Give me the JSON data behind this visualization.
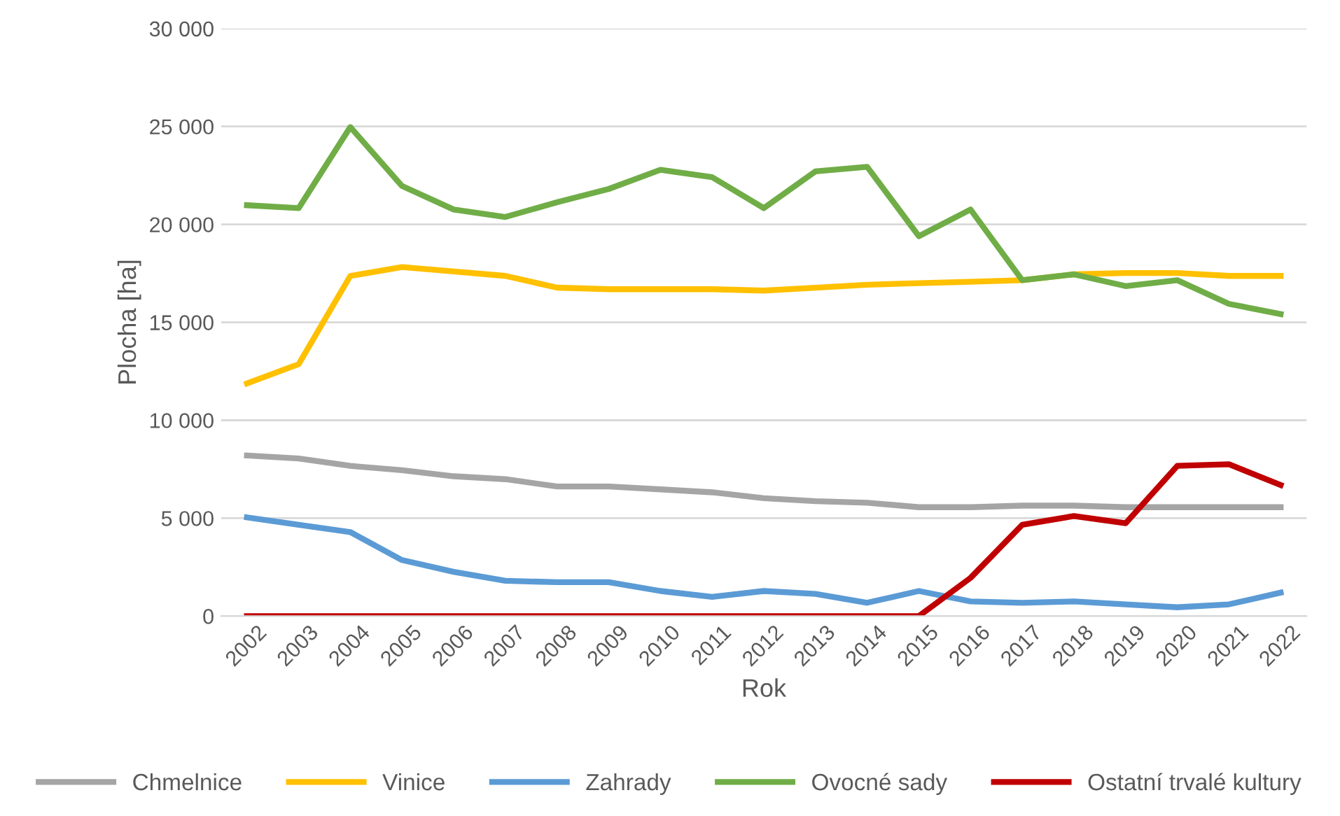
{
  "chart_data": {
    "type": "line",
    "xlabel": "Rok",
    "ylabel": "Plocha [ha]",
    "categories": [
      "2002",
      "2003",
      "2004",
      "2005",
      "2006",
      "2007",
      "2008",
      "2009",
      "2010",
      "2011",
      "2012",
      "2013",
      "2014",
      "2015",
      "2016",
      "2017",
      "2018",
      "2019",
      "2020",
      "2021",
      "2022"
    ],
    "series": [
      {
        "name": "Chmelnice",
        "color": "#a5a5a5",
        "values": [
          8200,
          8050,
          7670,
          7450,
          7140,
          6990,
          6620,
          6620,
          6470,
          6320,
          6020,
          5870,
          5790,
          5560,
          5560,
          5640,
          5640,
          5560,
          5560,
          5560,
          5560
        ]
      },
      {
        "name": "Vinice",
        "color": "#ffc000",
        "values": [
          11880,
          12860,
          17370,
          17820,
          17600,
          17370,
          16770,
          16690,
          16690,
          16690,
          16620,
          16770,
          16920,
          17000,
          17070,
          17150,
          17450,
          17520,
          17520,
          17370,
          17370
        ]
      },
      {
        "name": "Zahrady",
        "color": "#5b9bd5",
        "values": [
          5040,
          4660,
          4290,
          2860,
          2260,
          1800,
          1730,
          1730,
          1280,
          980,
          1280,
          1130,
          680,
          1280,
          750,
          680,
          750,
          600,
          450,
          600,
          1200
        ]
      },
      {
        "name": "Ovocné sady",
        "color": "#70ad47",
        "values": [
          20980,
          20830,
          24970,
          21960,
          20760,
          20380,
          21130,
          21810,
          22790,
          22410,
          20830,
          22710,
          22940,
          19400,
          20760,
          17150,
          17450,
          16850,
          17150,
          15940,
          15420
        ]
      },
      {
        "name": "Ostatní trvalé kultury",
        "color": "#c00000",
        "values": [
          0,
          0,
          0,
          0,
          0,
          0,
          0,
          0,
          0,
          0,
          0,
          0,
          0,
          0,
          1950,
          4660,
          5110,
          4740,
          7670,
          7750,
          6690
        ]
      }
    ],
    "ylim": [
      0,
      30000
    ],
    "yticks": [
      {
        "value": 0,
        "label": "0"
      },
      {
        "value": 5000,
        "label": "5 000"
      },
      {
        "value": 10000,
        "label": "10 000"
      },
      {
        "value": 15000,
        "label": "15 000"
      },
      {
        "value": 20000,
        "label": "20 000"
      },
      {
        "value": 25000,
        "label": "25 000"
      },
      {
        "value": 30000,
        "label": "30 000"
      }
    ],
    "grid": "y",
    "legend": "bottom",
    "marker": "none",
    "line_style": "solid"
  }
}
